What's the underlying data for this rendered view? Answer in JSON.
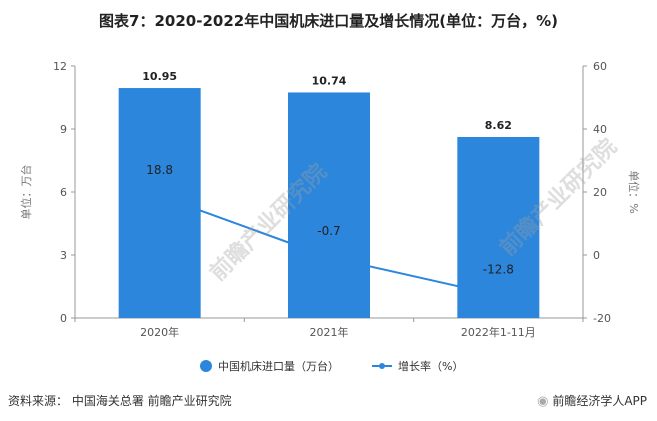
{
  "title": "图表7：2020-2022年中国机床进口量及增长情况(单位：万台，%)",
  "chart_data": {
    "type": "bar",
    "categories": [
      "2020年",
      "2021年",
      "2022年1-11月"
    ],
    "series": [
      {
        "name": "中国机床进口量（万台）",
        "type": "bar",
        "axis": "left",
        "values": [
          10.95,
          10.74,
          8.62
        ],
        "color": "#2b86dc"
      },
      {
        "name": "增长率（%）",
        "type": "line",
        "axis": "right",
        "values": [
          18.8,
          -0.7,
          -12.8
        ],
        "color": "#2b86dc"
      }
    ],
    "ylabel_left": "单位：万台",
    "ylabel_right": "单位：%",
    "ylim_left": [
      0,
      12
    ],
    "yticks_left": [
      0,
      3,
      6,
      9,
      12
    ],
    "ylim_right": [
      -20,
      60
    ],
    "yticks_right": [
      -20,
      0,
      20,
      40,
      60
    ],
    "grid": false,
    "legend": "bottom-center"
  },
  "footer": {
    "source": "资料来源：  中国海关总署 前瞻产业研究院",
    "brand": "前瞻经济学人APP"
  },
  "watermark_text": "前瞻产业研究院"
}
